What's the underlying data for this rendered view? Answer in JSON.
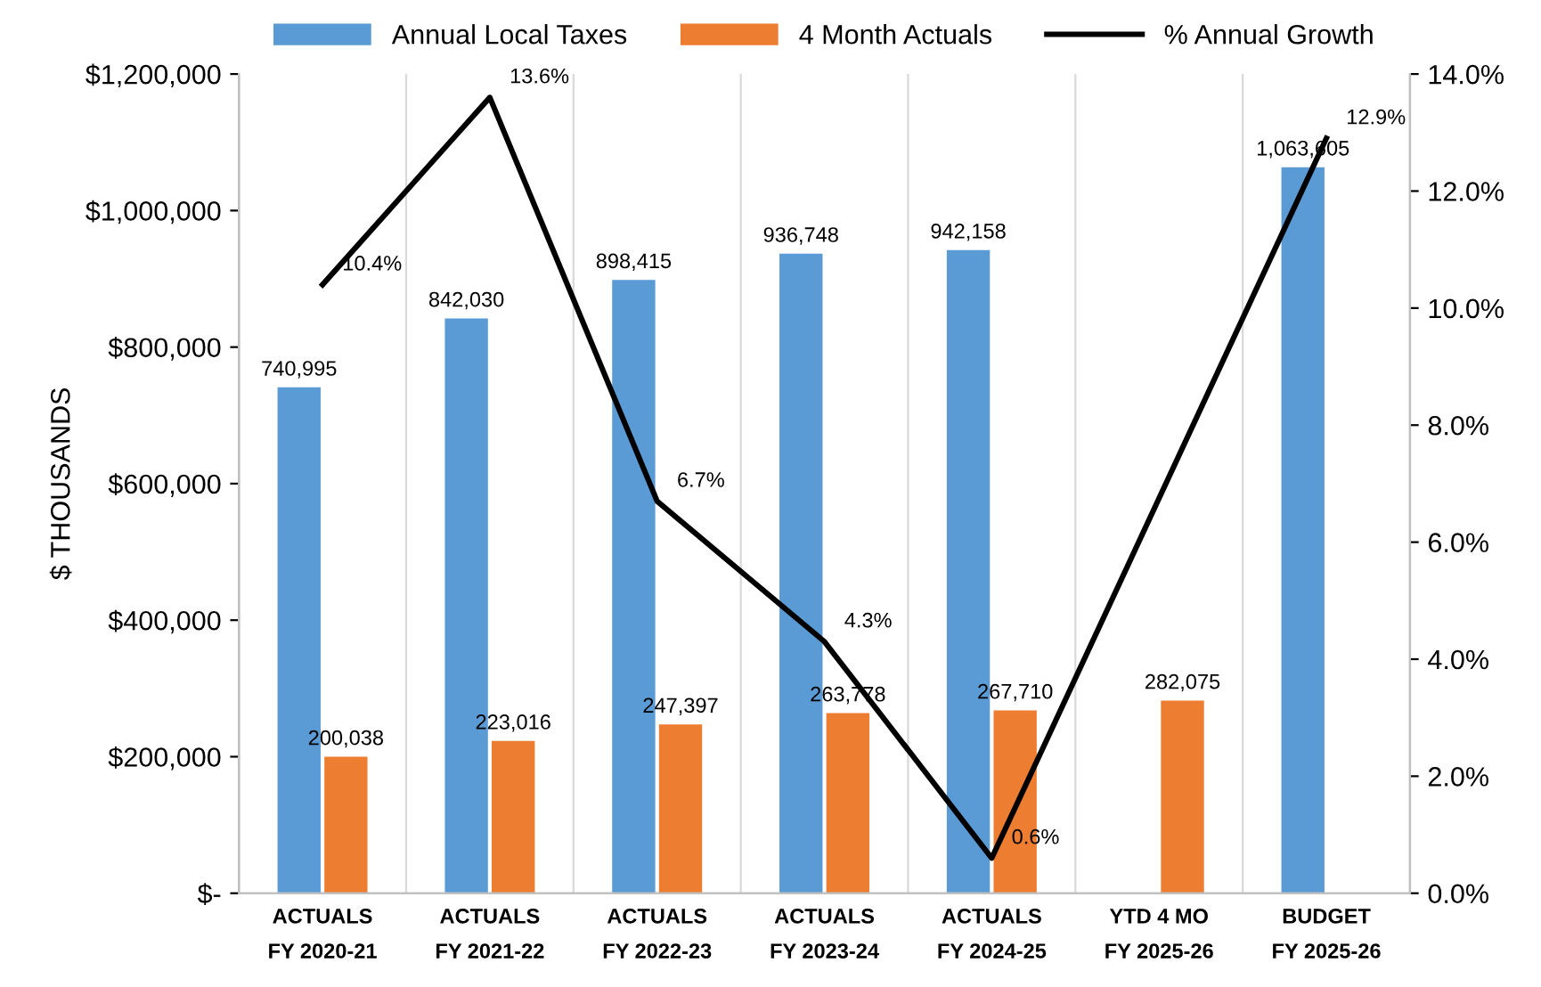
{
  "chart_data": {
    "type": "bar",
    "ylabel": "$ THOUSANDS",
    "categories": [
      "ACTUALS\nFY 2020-21",
      "ACTUALS\nFY 2021-22",
      "ACTUALS\nFY 2022-23",
      "ACTUALS\nFY 2023-24",
      "ACTUALS\nFY 2024-25",
      "YTD 4 MO\nFY 2025-26",
      "BUDGET\nFY 2025-26"
    ],
    "series": [
      {
        "name": "Annual Local Taxes",
        "color": "#5b9bd5",
        "values": [
          740995,
          842030,
          898415,
          936748,
          942158,
          null,
          1063605
        ],
        "value_labels": [
          "740,995",
          "842,030",
          "898,415",
          "936,748",
          "942,158",
          null,
          "1,063,605"
        ]
      },
      {
        "name": "4 Month Actuals",
        "color": "#ed7d31",
        "values": [
          200038,
          223016,
          247397,
          263778,
          267710,
          282075,
          null
        ],
        "value_labels": [
          "200,038",
          "223,016",
          "247,397",
          "263,778",
          "267,710",
          "282,075",
          null
        ]
      },
      {
        "name": "% Annual Growth",
        "type": "line",
        "axis": "y2",
        "color": "#000000",
        "values": [
          10.4,
          13.6,
          6.7,
          4.3,
          0.6,
          null,
          12.9
        ],
        "value_labels": [
          "10.4%",
          "13.6%",
          "6.7%",
          "4.3%",
          "0.6%",
          null,
          "12.9%"
        ]
      }
    ],
    "ylim": [
      0,
      1200000
    ],
    "yticks": [
      {
        "value": 0,
        "label": "$-"
      },
      {
        "value": 200000,
        "label": "$200,000"
      },
      {
        "value": 400000,
        "label": "$400,000"
      },
      {
        "value": 600000,
        "label": "$600,000"
      },
      {
        "value": 800000,
        "label": "$800,000"
      },
      {
        "value": 1000000,
        "label": "$1,000,000"
      },
      {
        "value": 1200000,
        "label": "$1,200,000"
      }
    ],
    "y2lim": [
      0,
      14
    ],
    "y2ticks": [
      {
        "value": 0,
        "label": "0.0%"
      },
      {
        "value": 2,
        "label": "2.0%"
      },
      {
        "value": 4,
        "label": "4.0%"
      },
      {
        "value": 6,
        "label": "6.0%"
      },
      {
        "value": 8,
        "label": "8.0%"
      },
      {
        "value": 10,
        "label": "10.0%"
      },
      {
        "value": 12,
        "label": "12.0%"
      },
      {
        "value": 14,
        "label": "14.0%"
      }
    ],
    "legend": "top",
    "grid": "x",
    "marker": "none",
    "line_style": "solid"
  }
}
